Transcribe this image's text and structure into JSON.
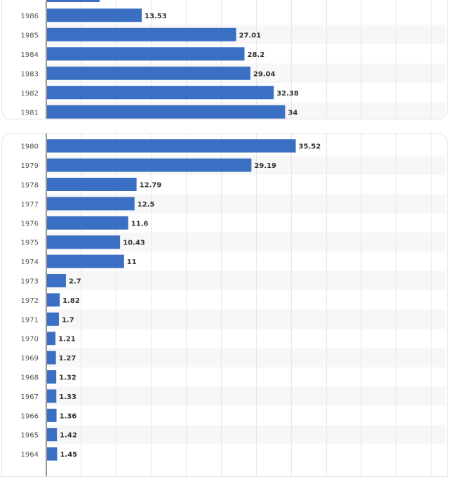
{
  "colors": {
    "bar": "#3a6fc4",
    "stripe": "#f7f7f7",
    "grid": "#e6e6e6",
    "axis": "#333333"
  },
  "chart_data": [
    {
      "type": "bar",
      "orientation": "horizontal",
      "categories": [
        "1986",
        "1985",
        "1984",
        "1983",
        "1982",
        "1981"
      ],
      "values": [
        13.53,
        27.01,
        28.2,
        29.04,
        32.38,
        34
      ],
      "value_labels": [
        "13.53",
        "27.01",
        "28.2",
        "29.04",
        "32.38",
        "34"
      ],
      "xlim": [
        0,
        55
      ],
      "grid": true
    },
    {
      "type": "bar",
      "orientation": "horizontal",
      "categories": [
        "1980",
        "1979",
        "1978",
        "1977",
        "1976",
        "1975",
        "1974",
        "1973",
        "1972",
        "1971",
        "1970",
        "1969",
        "1968",
        "1967",
        "1966",
        "1965",
        "1964"
      ],
      "values": [
        35.52,
        29.19,
        12.79,
        12.5,
        11.6,
        10.43,
        11,
        2.7,
        1.82,
        1.7,
        1.21,
        1.27,
        1.32,
        1.33,
        1.36,
        1.42,
        1.45
      ],
      "value_labels": [
        "35.52",
        "29.19",
        "12.79",
        "12.5",
        "11.6",
        "10.43",
        "11",
        "2.7",
        "1.82",
        "1.7",
        "1.21",
        "1.27",
        "1.32",
        "1.33",
        "1.36",
        "1.42",
        "1.45"
      ],
      "xlim": [
        0,
        55
      ],
      "grid": true
    }
  ]
}
